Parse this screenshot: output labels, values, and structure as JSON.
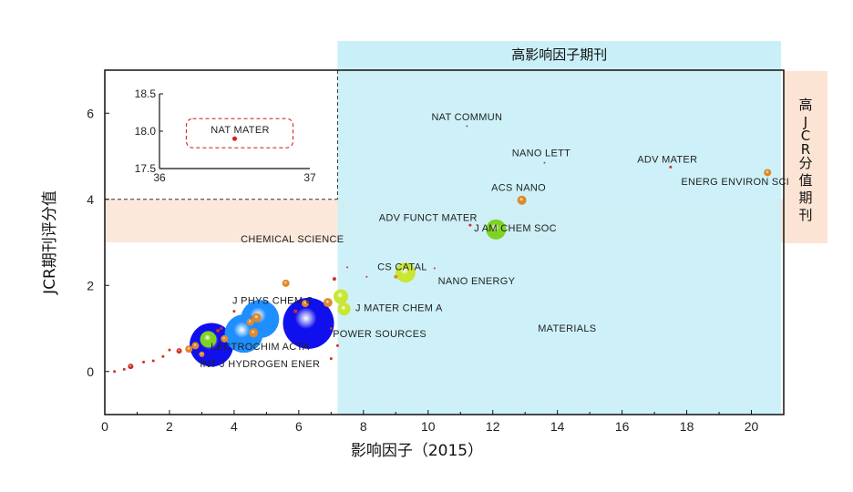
{
  "chart_data": {
    "type": "scatter",
    "xlabel": "影响因子（2015）",
    "ylabel": "JCR期刊评分值",
    "xlim": [
      0,
      21
    ],
    "ylim": [
      -1,
      7
    ],
    "xticks": [
      0,
      2,
      4,
      6,
      8,
      10,
      12,
      14,
      16,
      18,
      20
    ],
    "yticks": [
      0,
      2,
      4,
      6
    ],
    "high_if_label": "高影响因子期刊",
    "high_jcr_label": "高JCR分值期刊",
    "high_if_threshold_x": 7.2,
    "high_jcr_range_y": [
      3,
      4
    ],
    "labels": [
      {
        "text": "NAT COMMUN",
        "x": 11.2,
        "y": 5.84
      },
      {
        "text": "NANO LETT",
        "x": 13.5,
        "y": 5.0
      },
      {
        "text": "ADV MATER",
        "x": 17.4,
        "y": 4.85
      },
      {
        "text": "ENERG ENVIRON SCI",
        "x": 19.5,
        "y": 4.33
      },
      {
        "text": "ACS NANO",
        "x": 12.8,
        "y": 4.2
      },
      {
        "text": "ADV FUNCT MATER",
        "x": 10.0,
        "y": 3.5
      },
      {
        "text": "J AM CHEM SOC",
        "x": 12.7,
        "y": 3.25
      },
      {
        "text": "CHEMICAL SCIENCE",
        "x": 5.8,
        "y": 3.0
      },
      {
        "text": "CS CATAL",
        "x": 9.2,
        "y": 2.35
      },
      {
        "text": "NANO ENERGY",
        "x": 11.5,
        "y": 2.03
      },
      {
        "text": "J PHYS CHEM C",
        "x": 5.2,
        "y": 1.57
      },
      {
        "text": "J MATER CHEM A",
        "x": 9.1,
        "y": 1.4
      },
      {
        "text": "POWER SOURCES",
        "x": 8.5,
        "y": 0.8
      },
      {
        "text": "MATERIALS",
        "x": 14.3,
        "y": 0.93
      },
      {
        "text": "LECTROCHIM ACTA",
        "x": 4.8,
        "y": 0.5
      },
      {
        "text": "INT J HYDROGEN ENER",
        "x": 4.8,
        "y": 0.1
      }
    ],
    "points": [
      {
        "x": 20.5,
        "y": 4.62,
        "r": 4,
        "color": "#e0882a"
      },
      {
        "x": 17.5,
        "y": 4.75,
        "r": 1.5,
        "color": "#cc3322"
      },
      {
        "x": 13.6,
        "y": 4.85,
        "r": 1,
        "color": "#666666"
      },
      {
        "x": 12.9,
        "y": 3.98,
        "r": 5,
        "color": "#e0882a"
      },
      {
        "x": 12.1,
        "y": 3.3,
        "r": 11,
        "color": "#7ed321"
      },
      {
        "x": 11.3,
        "y": 3.4,
        "r": 1.5,
        "color": "#cc3322"
      },
      {
        "x": 11.2,
        "y": 5.7,
        "r": 1,
        "color": "#666666"
      },
      {
        "x": 9.3,
        "y": 2.3,
        "r": 11,
        "color": "#c8e632"
      },
      {
        "x": 9.0,
        "y": 2.2,
        "r": 2,
        "color": "#e0882a"
      },
      {
        "x": 8.1,
        "y": 2.2,
        "r": 1,
        "color": "#cc3322"
      },
      {
        "x": 7.5,
        "y": 2.42,
        "r": 1,
        "color": "#cc3322"
      },
      {
        "x": 7.1,
        "y": 2.15,
        "r": 2,
        "color": "#cc3322"
      },
      {
        "x": 7.3,
        "y": 1.74,
        "r": 8,
        "color": "#c8e632"
      },
      {
        "x": 7.4,
        "y": 1.45,
        "r": 7,
        "color": "#c8e632"
      },
      {
        "x": 6.3,
        "y": 1.12,
        "r": 28,
        "color": "#1010ee"
      },
      {
        "x": 6.9,
        "y": 1.6,
        "r": 5,
        "color": "#e0882a"
      },
      {
        "x": 6.2,
        "y": 1.58,
        "r": 4,
        "color": "#e0882a"
      },
      {
        "x": 5.6,
        "y": 2.05,
        "r": 4,
        "color": "#e0882a"
      },
      {
        "x": 5.9,
        "y": 1.4,
        "r": 2,
        "color": "#cc3322"
      },
      {
        "x": 4.8,
        "y": 1.22,
        "r": 21,
        "color": "#1f8fff"
      },
      {
        "x": 4.7,
        "y": 1.25,
        "r": 5,
        "color": "#e0882a"
      },
      {
        "x": 4.5,
        "y": 1.15,
        "r": 4,
        "color": "#e0882a"
      },
      {
        "x": 4.3,
        "y": 0.88,
        "r": 21,
        "color": "#1f8fff"
      },
      {
        "x": 4.6,
        "y": 0.9,
        "r": 5,
        "color": "#e0882a"
      },
      {
        "x": 3.3,
        "y": 0.62,
        "r": 24,
        "color": "#1010ee"
      },
      {
        "x": 3.2,
        "y": 0.75,
        "r": 9,
        "color": "#7ed321"
      },
      {
        "x": 3.7,
        "y": 0.76,
        "r": 4,
        "color": "#e0882a"
      },
      {
        "x": 2.8,
        "y": 0.6,
        "r": 4,
        "color": "#e0882a"
      },
      {
        "x": 2.6,
        "y": 0.52,
        "r": 4,
        "color": "#e0882a"
      },
      {
        "x": 3.0,
        "y": 0.4,
        "r": 3,
        "color": "#e0882a"
      },
      {
        "x": 2.3,
        "y": 0.48,
        "r": 3,
        "color": "#cc3322"
      },
      {
        "x": 3.5,
        "y": 0.95,
        "r": 2,
        "color": "#cc3322"
      },
      {
        "x": 2.0,
        "y": 0.5,
        "r": 1.5,
        "color": "#cc3322"
      },
      {
        "x": 1.8,
        "y": 0.35,
        "r": 1.5,
        "color": "#cc3322"
      },
      {
        "x": 1.5,
        "y": 0.25,
        "r": 1.5,
        "color": "#cc3322"
      },
      {
        "x": 1.2,
        "y": 0.22,
        "r": 1.5,
        "color": "#cc3322"
      },
      {
        "x": 0.8,
        "y": 0.12,
        "r": 3,
        "color": "#cc3322"
      },
      {
        "x": 0.6,
        "y": 0.05,
        "r": 1.5,
        "color": "#cc3322"
      },
      {
        "x": 0.3,
        "y": 0.0,
        "r": 1.5,
        "color": "#cc3322"
      },
      {
        "x": 4.0,
        "y": 1.4,
        "r": 1.5,
        "color": "#cc3322"
      },
      {
        "x": 3.6,
        "y": 1.0,
        "r": 1.5,
        "color": "#cc3322"
      },
      {
        "x": 7.0,
        "y": 1.0,
        "r": 1.5,
        "color": "#cc3322"
      },
      {
        "x": 7.2,
        "y": 0.6,
        "r": 1.5,
        "color": "#cc3322"
      },
      {
        "x": 7.0,
        "y": 0.3,
        "r": 1.5,
        "color": "#cc3322"
      },
      {
        "x": 10.2,
        "y": 2.4,
        "r": 1,
        "color": "#cc3322"
      }
    ],
    "inset": {
      "xlim": [
        36,
        37
      ],
      "ylim": [
        17.5,
        18.5
      ],
      "yticks": [
        "18.5",
        "18.0",
        "17.5"
      ],
      "xticks": [
        "36",
        "37"
      ],
      "point": {
        "x": 36.5,
        "y": 17.9,
        "label": "NAT MATER"
      }
    }
  },
  "colors": {
    "high_if_region": "#c9f0f8",
    "high_jcr_region": "#fbe4d4"
  }
}
